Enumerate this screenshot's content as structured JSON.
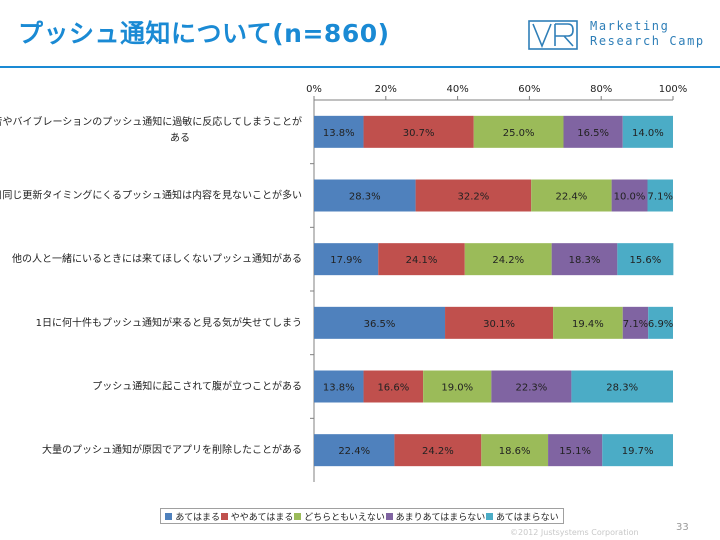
{
  "header": {
    "title": "プッシュ通知について(n=860)",
    "logo_line1": "Marketing",
    "logo_line2": "Research Camp"
  },
  "footer": {
    "copyright": "©2012 Justsystems Corporation",
    "page_number": "33"
  },
  "colors": [
    "#4f81bd",
    "#c0504d",
    "#9bbb59",
    "#8064a2",
    "#4bacc6"
  ],
  "chart_data": {
    "type": "bar",
    "orientation": "horizontal",
    "stacked": true,
    "xlim": [
      0,
      100
    ],
    "x_ticks": [
      "0%",
      "20%",
      "40%",
      "60%",
      "80%",
      "100%"
    ],
    "legend_position": "bottom",
    "categories": [
      [
        "特定の音やバイブレーションのプッシュ通知に過敏に反応してしまうことが",
        "ある"
      ],
      [
        "毎日同じ更新タイミングにくるプッシュ通知は内容を見ないことが多い"
      ],
      [
        "他の人と一緒にいるときには来てほしくないプッシュ通知がある"
      ],
      [
        "1日に何十件もプッシュ通知が来ると見る気が失せてしまう"
      ],
      [
        "プッシュ通知に起こされて腹が立つことがある"
      ],
      [
        "大量のプッシュ通知が原因でアプリを削除したことがある"
      ]
    ],
    "series": [
      {
        "name": "あてはまる",
        "values": [
          13.8,
          28.3,
          17.9,
          36.5,
          13.8,
          22.4
        ]
      },
      {
        "name": "ややあてはまる",
        "values": [
          30.7,
          32.2,
          24.1,
          30.1,
          16.6,
          24.2
        ]
      },
      {
        "name": "どちらともいえない",
        "values": [
          25.0,
          22.4,
          24.2,
          19.4,
          19.0,
          18.6
        ]
      },
      {
        "name": "あまりあてはまらない",
        "values": [
          16.5,
          10.0,
          18.3,
          7.1,
          22.3,
          15.1
        ]
      },
      {
        "name": "あてはまらない",
        "values": [
          14.0,
          7.1,
          15.6,
          6.9,
          28.3,
          19.7
        ]
      }
    ]
  }
}
